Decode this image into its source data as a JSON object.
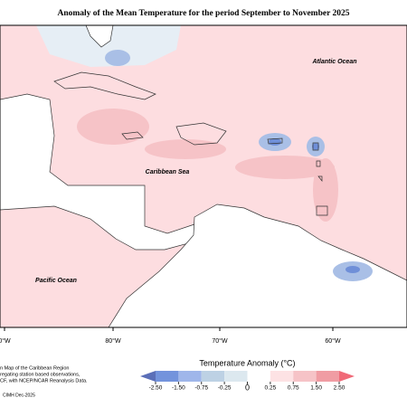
{
  "title": "Anomaly of the Mean Temperature for the period September to November 2025",
  "map": {
    "labels": [
      "Atlantic Ocean",
      "Caribbean Sea",
      "Pacific Ocean"
    ],
    "longitudes": [
      "0°W",
      "80°W",
      "70°W",
      "60°W"
    ]
  },
  "legend": {
    "title": "Temperature Anomaly (°C)",
    "ticks": [
      {
        "value": -2.5,
        "label": "-2.50"
      },
      {
        "value": -1.5,
        "label": "-1.50"
      },
      {
        "value": -0.75,
        "label": "-0.75"
      },
      {
        "value": -0.25,
        "label": "-0.25"
      },
      0,
      {
        "value": 0.25,
        "label": "0.25"
      },
      {
        "value": 0.75,
        "label": "0.75"
      },
      {
        "value": 1.5,
        "label": "1.50"
      },
      {
        "value": 2.5,
        "label": "2.50"
      }
    ],
    "colors": [
      "#5b6fb8",
      "#7393dc",
      "#9fb6ea",
      "#bdd1e4",
      "#dce8ef",
      "#ffffff",
      "#fde2e4",
      "#f6c3c7",
      "#f09ca3",
      "#f06a78"
    ]
  },
  "footnote": {
    "lines": [
      "n Map of the Caribbean Region",
      "regating station based observations,",
      "CF, with NCEP/NCAR Reanalysis Data."
    ],
    "credit": "CIMH Dec-2025"
  }
}
